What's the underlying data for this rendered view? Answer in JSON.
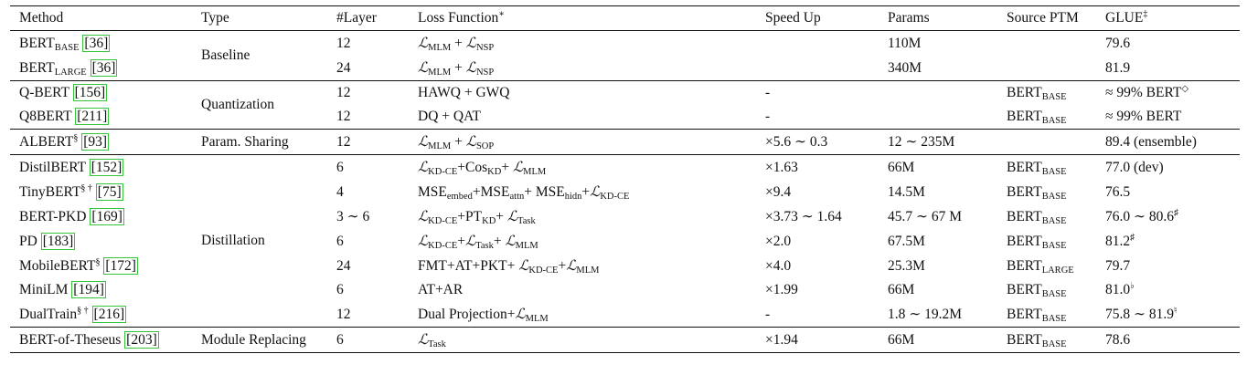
{
  "table": {
    "headers": {
      "method": "Method",
      "type": "Type",
      "layers": "#Layer",
      "loss": "Loss Function",
      "loss_mark": "∗",
      "speedup": "Speed Up",
      "params": "Params",
      "source": "Source PTM",
      "glue": "GLUE",
      "glue_mark": "‡"
    },
    "groups": [
      {
        "type": "Baseline",
        "rows": [
          {
            "method": "BERT",
            "method_sub": "BASE",
            "method_sup": "",
            "ref": "[36]",
            "layers": "12",
            "loss": "ℒ_MLM + ℒ_NSP",
            "speedup": "",
            "params": "110M",
            "source": "",
            "source_sub": "",
            "glue": "79.6",
            "glue_sup": ""
          },
          {
            "method": "BERT",
            "method_sub": "LARGE",
            "method_sup": "",
            "ref": "[36]",
            "layers": "24",
            "loss": "ℒ_MLM + ℒ_NSP",
            "speedup": "",
            "params": "340M",
            "source": "",
            "source_sub": "",
            "glue": "81.9",
            "glue_sup": ""
          }
        ]
      },
      {
        "type": "Quantization",
        "rows": [
          {
            "method": "Q-BERT",
            "method_sub": "",
            "method_sup": "",
            "ref": "[156]",
            "layers": "12",
            "loss": "HAWQ + GWQ",
            "speedup": "-",
            "params": "",
            "source": "BERT",
            "source_sub": "BASE",
            "glue": "≈ 99% BERT",
            "glue_sup": "◇"
          },
          {
            "method": "Q8BERT",
            "method_sub": "",
            "method_sup": "",
            "ref": "[211]",
            "layers": "12",
            "loss": "DQ + QAT",
            "speedup": "-",
            "params": "",
            "source": "BERT",
            "source_sub": "BASE",
            "glue": "≈ 99% BERT",
            "glue_sup": ""
          }
        ]
      },
      {
        "type": "Param. Sharing",
        "rows": [
          {
            "method": "ALBERT",
            "method_sub": "",
            "method_sup": "§",
            "ref": "[93]",
            "layers": "12",
            "loss": "ℒ_MLM + ℒ_SOP",
            "speedup": "×5.6 ∼ 0.3",
            "params": "12 ∼ 235M",
            "source": "",
            "source_sub": "",
            "glue": "89.4 (ensemble)",
            "glue_sup": ""
          }
        ]
      },
      {
        "type": "Distillation",
        "rows": [
          {
            "method": "DistilBERT",
            "method_sub": "",
            "method_sup": "",
            "ref": "[152]",
            "layers": "6",
            "loss": "ℒ_KD-CE+Cos_KD+ ℒ_MLM",
            "speedup": "×1.63",
            "params": "66M",
            "source": "BERT",
            "source_sub": "BASE",
            "glue": "77.0 (dev)",
            "glue_sup": ""
          },
          {
            "method": "TinyBERT",
            "method_sub": "",
            "method_sup": "§ †",
            "ref": "[75]",
            "layers": "4",
            "loss": "MSE_embed+MSE_attn+ MSE_hidn+ℒ_KD-CE",
            "speedup": "×9.4",
            "params": "14.5M",
            "source": "BERT",
            "source_sub": "BASE",
            "glue": "76.5",
            "glue_sup": ""
          },
          {
            "method": "BERT-PKD",
            "method_sub": "",
            "method_sup": "",
            "ref": "[169]",
            "layers": "3 ∼ 6",
            "loss": "ℒ_KD-CE+PT_KD+ ℒ_Task",
            "speedup": "×3.73 ∼ 1.64",
            "params": "45.7 ∼ 67 M",
            "source": "BERT",
            "source_sub": "BASE",
            "glue": "76.0 ∼ 80.6",
            "glue_sup": "♯"
          },
          {
            "method": "PD",
            "method_sub": "",
            "method_sup": "",
            "ref": "[183]",
            "layers": "6",
            "loss": "ℒ_KD-CE+ℒ_Task+ ℒ_MLM",
            "speedup": "×2.0",
            "params": "67.5M",
            "source": "BERT",
            "source_sub": "BASE",
            "glue": "81.2",
            "glue_sup": "♯"
          },
          {
            "method": "MobileBERT",
            "method_sub": "",
            "method_sup": "§",
            "ref": "[172]",
            "layers": "24",
            "loss": "FMT+AT+PKT+ ℒ_KD-CE+ℒ_MLM",
            "speedup": "×4.0",
            "params": "25.3M",
            "source": "BERT",
            "source_sub": "LARGE",
            "glue": "79.7",
            "glue_sup": ""
          },
          {
            "method": "MiniLM",
            "method_sub": "",
            "method_sup": "",
            "ref": "[194]",
            "layers": "6",
            "loss": "AT+AR",
            "speedup": "×1.99",
            "params": "66M",
            "source": "BERT",
            "source_sub": "BASE",
            "glue": "81.0",
            "glue_sup": "♭"
          },
          {
            "method": "DualTrain",
            "method_sub": "",
            "method_sup": "§ †",
            "ref": "[216]",
            "layers": "12",
            "loss": "Dual Projection+ℒ_MLM",
            "speedup": "-",
            "params": "1.8 ∼ 19.2M",
            "source": "BERT",
            "source_sub": "BASE",
            "glue": "75.8 ∼ 81.9",
            "glue_sup": "♮"
          }
        ]
      },
      {
        "type": "Module Replacing",
        "rows": [
          {
            "method": "BERT-of-Theseus",
            "method_sub": "",
            "method_sup": "",
            "ref": "[203]",
            "layers": "6",
            "loss": "ℒ_Task",
            "speedup": "×1.94",
            "params": "66M",
            "source": "BERT",
            "source_sub": "BASE",
            "glue": "78.6",
            "glue_sup": ""
          }
        ]
      }
    ]
  }
}
